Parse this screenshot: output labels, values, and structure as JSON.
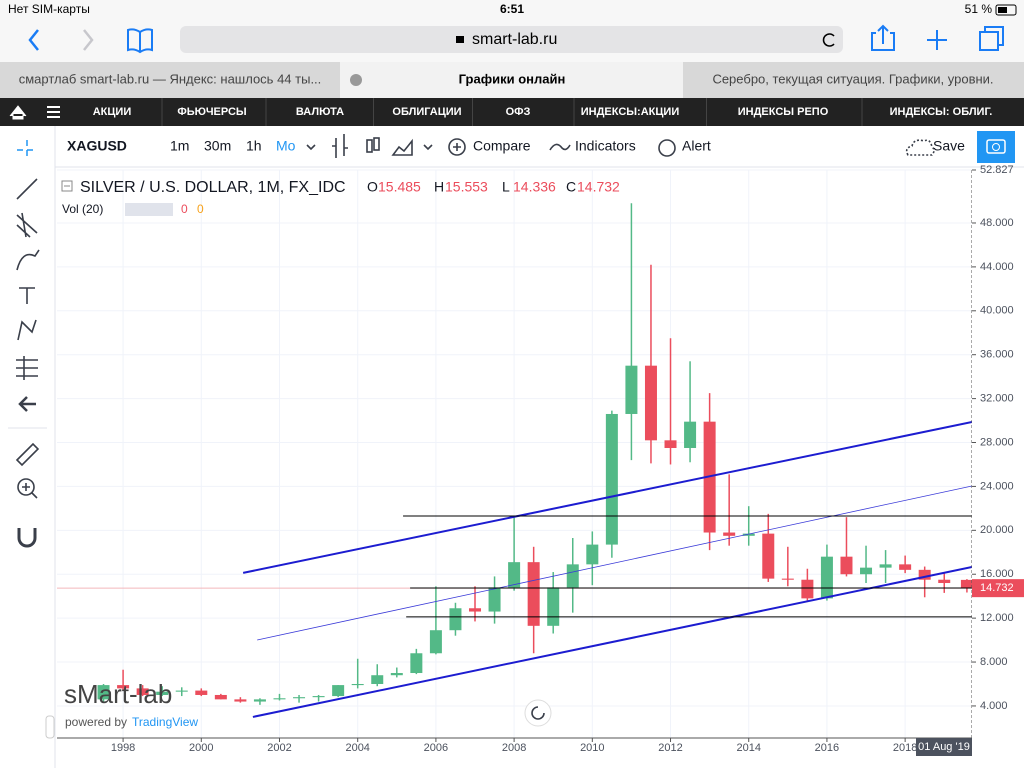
{
  "status_bar": {
    "carrier": "Нет SIM-карты",
    "time": "6:51",
    "battery": "51 %"
  },
  "browser": {
    "url": "smart-lab.ru",
    "tabs": [
      "смартлаб smart-lab.ru — Яндекс: нашлось 44 ты...",
      "Графики онлайн",
      "Серебро, текущая ситуация. Графики, уровни."
    ]
  },
  "site_nav": {
    "items": [
      "АКЦИИ",
      "ФЬЮЧЕРСЫ",
      "ВАЛЮТА",
      "ОБЛИГАЦИИ",
      "ОФЗ",
      "ИНДЕКСЫ:АКЦИИ",
      "ИНДЕКСЫ РЕПО",
      "ИНДЕКСЫ: ОБЛИГ."
    ]
  },
  "toolbar": {
    "symbol": "XAGUSD",
    "intervals": [
      "1m",
      "30m",
      "1h",
      "Mo"
    ],
    "compare": "Compare",
    "indicators": "Indicators",
    "alert": "Alert",
    "save": "Save"
  },
  "chart_data": {
    "type": "candlestick",
    "title": "SILVER / U.S. DOLLAR, 1M, FX_IDC",
    "ohlc_labels": [
      "O",
      "H",
      "L",
      "C"
    ],
    "volume_label": "Vol (20)",
    "volume_values": [
      0,
      0
    ],
    "date_label": "01 Aug '19",
    "watermark": "sMart-lab",
    "powered_by": "powered by",
    "provider": "TradingView",
    "x": [
      1997.5,
      1998,
      1998.5,
      1999,
      1999.5,
      2000,
      2000.5,
      2001,
      2001.5,
      2002,
      2002.5,
      2003,
      2003.5,
      2004,
      2004.5,
      2005,
      2005.5,
      2006,
      2006.5,
      2007,
      2007.5,
      2008,
      2008.5,
      2009,
      2009.5,
      2010,
      2010.5,
      2011,
      2011.5,
      2012,
      2012.5,
      2013,
      2013.5,
      2014,
      2014.5,
      2015,
      2015.5,
      2016,
      2016.5,
      2017,
      2017.5,
      2018,
      2018.5,
      2019,
      2019.58
    ],
    "open": [
      4.6,
      5.9,
      5.6,
      5.0,
      5.3,
      5.4,
      5.0,
      4.6,
      4.4,
      4.6,
      4.7,
      4.8,
      4.9,
      5.9,
      6.0,
      6.8,
      7.0,
      8.8,
      10.9,
      12.9,
      12.6,
      14.8,
      17.1,
      11.3,
      14.8,
      16.9,
      18.7,
      30.6,
      35.0,
      28.2,
      27.5,
      29.9,
      19.8,
      19.5,
      19.7,
      15.6,
      15.5,
      13.8,
      17.6,
      16.0,
      16.6,
      16.9,
      16.4,
      15.5,
      15.485
    ],
    "high": [
      6.0,
      7.3,
      5.9,
      5.8,
      5.7,
      5.6,
      5.1,
      4.8,
      4.7,
      5.1,
      5.0,
      5.0,
      5.9,
      8.3,
      7.8,
      7.5,
      9.2,
      14.9,
      13.4,
      14.9,
      15.8,
      21.2,
      18.5,
      16.2,
      19.3,
      19.9,
      30.9,
      49.8,
      44.2,
      37.5,
      35.4,
      32.5,
      25.1,
      22.2,
      21.5,
      18.5,
      16.5,
      18.7,
      21.2,
      18.6,
      18.2,
      17.7,
      16.7,
      16.2,
      15.553
    ],
    "low": [
      4.3,
      5.4,
      4.9,
      4.9,
      4.9,
      4.9,
      4.6,
      4.3,
      4.1,
      4.5,
      4.3,
      4.4,
      4.8,
      5.6,
      5.8,
      6.6,
      6.9,
      8.7,
      10.4,
      11.7,
      11.5,
      14.5,
      8.8,
      10.6,
      12.5,
      15.0,
      17.5,
      26.4,
      26.1,
      26.0,
      26.2,
      18.2,
      18.6,
      18.6,
      15.3,
      14.9,
      13.6,
      13.6,
      15.8,
      15.2,
      15.2,
      16.1,
      13.9,
      14.3,
      14.336
    ],
    "close": [
      5.9,
      5.6,
      5.0,
      5.3,
      5.4,
      5.0,
      4.6,
      4.4,
      4.6,
      4.7,
      4.8,
      4.9,
      5.9,
      6.0,
      6.8,
      7.0,
      8.8,
      10.9,
      12.9,
      12.6,
      14.8,
      17.1,
      11.3,
      14.8,
      16.9,
      18.7,
      30.6,
      35.0,
      28.2,
      27.5,
      29.9,
      19.8,
      19.5,
      19.7,
      15.6,
      15.5,
      13.8,
      17.6,
      16.0,
      16.6,
      16.9,
      16.4,
      15.5,
      15.2,
      14.732
    ],
    "up_color": "#53b987",
    "down_color": "#eb4d5c",
    "price_line_color": "#f3b6bb",
    "drawings": [
      {
        "x": [
          2001.07,
          2019.71
        ],
        "y": [
          16.12,
          29.87
        ],
        "color": "#1c1cd0",
        "width": 2
      },
      {
        "x": [
          2001.43,
          2019.71
        ],
        "y": [
          10.01,
          24.04
        ],
        "color": "#3a3ad8",
        "width": 0.8
      },
      {
        "x": [
          2001.32,
          2019.71
        ],
        "y": [
          3.0,
          16.66
        ],
        "color": "#1c1cd0",
        "width": 2
      },
      {
        "x": [
          2005.16,
          2019.71
        ],
        "y": [
          21.31,
          21.31
        ],
        "color": "#000000",
        "width": 1
      },
      {
        "x": [
          2005.34,
          2019.71
        ],
        "y": [
          14.75,
          14.75
        ],
        "color": "#000000",
        "width": 1
      },
      {
        "x": [
          2005.24,
          2019.71
        ],
        "y": [
          12.11,
          12.11
        ],
        "color": "#000000",
        "width": 1
      }
    ],
    "xlim": [
      1996.31,
      2019.71
    ],
    "ylim": [
      1.08,
      52.827
    ],
    "xticks": [
      1998,
      2000,
      2002,
      2004,
      2006,
      2008,
      2010,
      2012,
      2014,
      2016,
      2018
    ],
    "yticks": [
      {
        "value": 4,
        "label": "4.000"
      },
      {
        "value": 8,
        "label": "8.000"
      },
      {
        "value": 12,
        "label": "12.000"
      },
      {
        "value": 16,
        "label": "16.000"
      },
      {
        "value": 20,
        "label": "20.000"
      },
      {
        "value": 24,
        "label": "24.000"
      },
      {
        "value": 28,
        "label": "28.000"
      },
      {
        "value": 32,
        "label": "32.000"
      },
      {
        "value": 36,
        "label": "36.000"
      },
      {
        "value": 40,
        "label": "40.000"
      },
      {
        "value": 44,
        "label": "44.000"
      },
      {
        "value": 48,
        "label": "48.000"
      },
      {
        "value": 52.827,
        "label": "52.827"
      }
    ],
    "grid": true
  }
}
